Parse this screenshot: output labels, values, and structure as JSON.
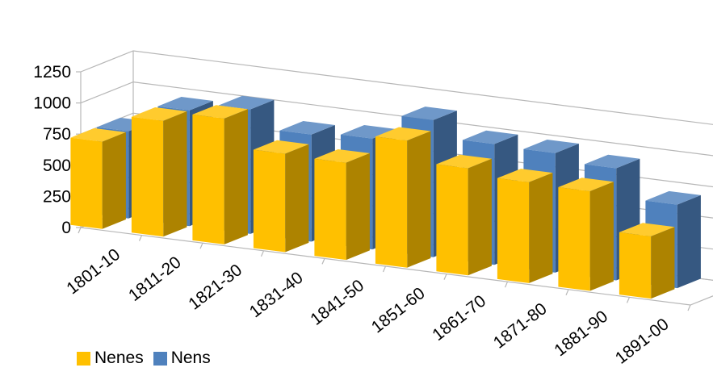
{
  "chart_data": {
    "type": "bar",
    "subtype": "3d-clustered-column",
    "title": "",
    "xlabel": "",
    "ylabel": "",
    "categories": [
      "1801-10",
      "1811-20",
      "1821-30",
      "1831-40",
      "1841-50",
      "1851-60",
      "1861-70",
      "1871-80",
      "1881-90",
      "1891-00"
    ],
    "series": [
      {
        "name": "Nenes",
        "color": "#FFC000",
        "values": [
          700,
          930,
          1010,
          790,
          780,
          1020,
          860,
          810,
          800,
          500
        ]
      },
      {
        "name": "Nens",
        "color": "#4F81BD",
        "values": [
          700,
          930,
          1000,
          860,
          890,
          1100,
          970,
          960,
          900,
          670
        ]
      }
    ],
    "y_ticks": [
      "0",
      "250",
      "500",
      "750",
      "1000",
      "1250"
    ],
    "ylim": [
      0,
      1250
    ],
    "grid": true,
    "legend_position": "bottom-left"
  }
}
